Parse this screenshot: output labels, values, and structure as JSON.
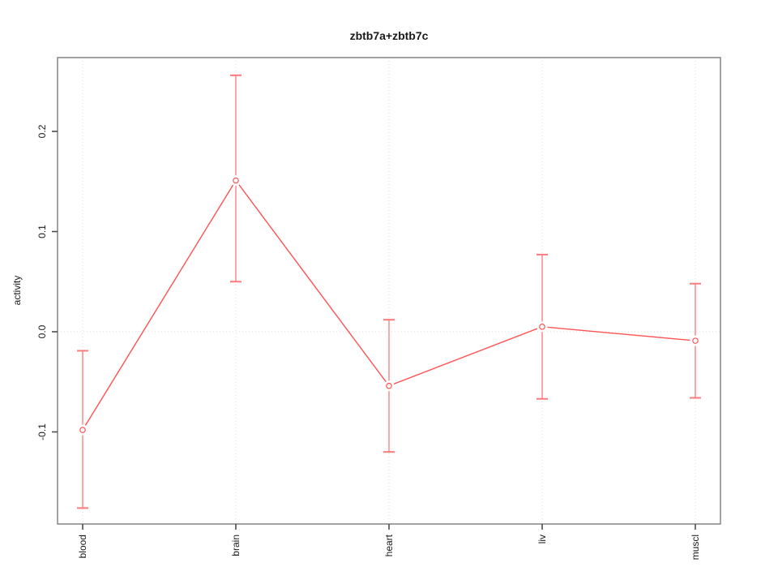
{
  "page": {
    "background": "#FFFFFF"
  },
  "chart_data": {
    "type": "line",
    "title": "zbtb7a+zbtb7c",
    "xlabel": "",
    "ylabel": "activity",
    "categories": [
      "blood",
      "brain",
      "heart",
      "liv",
      "muscl"
    ],
    "series": [
      {
        "name": "zbtb7a+zbtb7c activity",
        "values": [
          -0.098,
          0.151,
          -0.054,
          0.005,
          -0.009
        ],
        "error_upper": [
          -0.019,
          0.256,
          0.012,
          0.077,
          0.048
        ],
        "error_lower": [
          -0.176,
          0.05,
          -0.12,
          -0.067,
          -0.066
        ]
      }
    ],
    "y_ticks": [
      0.2,
      0.1,
      0.0,
      -0.1
    ],
    "ylim": [
      -0.192,
      0.274
    ],
    "grid": {
      "vertical": "dotted line at each category",
      "horizontal": "dotted line at y=0"
    },
    "legend_position": "none",
    "point_marker": "open-circle",
    "colors": {
      "line": "#FF5252",
      "error_stem": "#FFA5A5",
      "error_cap": "#FF7A7A",
      "marker_stroke": "#FF5252",
      "marker_fill": "#FFFFFF",
      "frame": "#8A8A8A",
      "tick": "#4D4D4D",
      "label_text": "#1A1A1A",
      "gridline": "#DBDBDB",
      "background": "#FFFFFF"
    }
  }
}
